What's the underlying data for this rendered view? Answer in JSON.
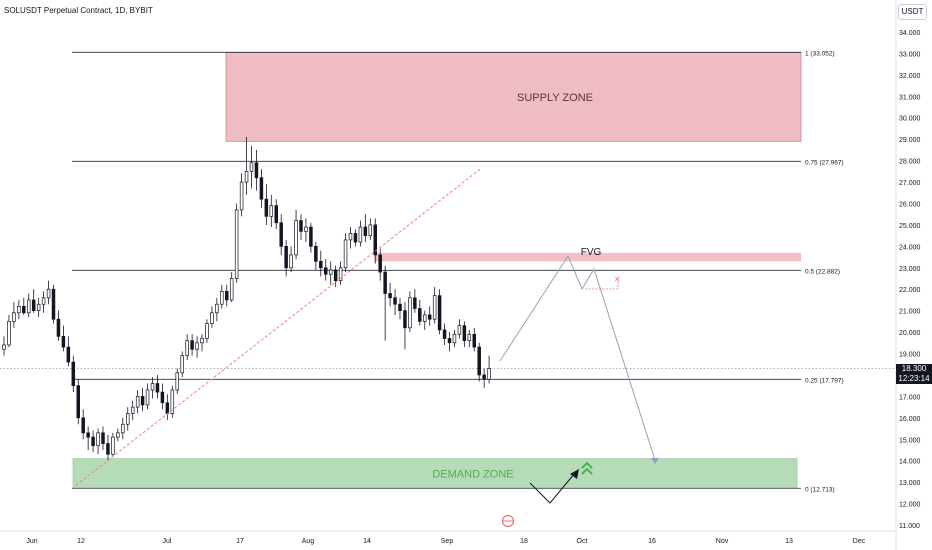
{
  "header": {
    "title": "SOLUSDT Perpetual Contract, 1D, BYBIT",
    "currency": "USDT"
  },
  "price_tag": {
    "price": "18.300",
    "countdown": "12:23:14"
  },
  "colors": {
    "up": "#131722",
    "down": "#131722",
    "supply_fill": "#e8a6ae",
    "demand_fill": "#a8d5ad",
    "fvg_fill": "#f2b8be",
    "trendline": "#f08080",
    "projection": "#9a9fb5",
    "demand_text": "#4caf50",
    "arrow_green": "#4caf50"
  },
  "chart_data": {
    "type": "candlestick",
    "title": "SOLUSDT Perpetual Contract, 1D, BYBIT",
    "ylim": [
      10.4,
      34.6
    ],
    "y_ticks": [
      "11.000",
      "12.000",
      "13.000",
      "14.000",
      "15.000",
      "16.000",
      "17.000",
      "18.000",
      "19.000",
      "20.000",
      "21.000",
      "22.000",
      "23.000",
      "24.000",
      "25.000",
      "26.000",
      "27.000",
      "28.000",
      "29.000",
      "30.000",
      "31.000",
      "32.000",
      "33.000",
      "34.000"
    ],
    "x_ticks": [
      "Jun",
      "12",
      "Jul",
      "17",
      "Aug",
      "14",
      "Sep",
      "18",
      "Oct",
      "16",
      "Nov",
      "13",
      "Dec"
    ],
    "fib_levels": [
      {
        "ratio": "1",
        "price": 33.052,
        "label": "1 (33.052)"
      },
      {
        "ratio": "0.75",
        "price": 27.967,
        "label": "0.75 (27.967)"
      },
      {
        "ratio": "0.5",
        "price": 22.882,
        "label": "0.5 (22.882)"
      },
      {
        "ratio": "0.25",
        "price": 17.797,
        "label": "0.25 (17.797)"
      },
      {
        "ratio": "0",
        "price": 12.713,
        "label": "0 (12.713)"
      }
    ],
    "zones": [
      {
        "name": "SUPPLY ZONE",
        "top": 33.05,
        "bottom": 28.9
      },
      {
        "name": "DEMAND ZONE",
        "top": 14.1,
        "bottom": 12.71
      },
      {
        "name": "FVG",
        "top": 23.7,
        "bottom": 23.3
      }
    ],
    "current_price": 18.3,
    "candles": [
      {
        "o": 19.2,
        "h": 19.8,
        "l": 18.9,
        "c": 19.4
      },
      {
        "o": 19.4,
        "h": 20.8,
        "l": 19.3,
        "c": 20.5
      },
      {
        "o": 20.5,
        "h": 21.4,
        "l": 20.2,
        "c": 20.9
      },
      {
        "o": 20.9,
        "h": 21.5,
        "l": 20.6,
        "c": 21.2
      },
      {
        "o": 21.2,
        "h": 21.6,
        "l": 20.8,
        "c": 20.9
      },
      {
        "o": 20.9,
        "h": 21.8,
        "l": 20.7,
        "c": 21.5
      },
      {
        "o": 21.5,
        "h": 22.0,
        "l": 20.9,
        "c": 21.0
      },
      {
        "o": 21.0,
        "h": 21.6,
        "l": 20.7,
        "c": 21.3
      },
      {
        "o": 21.3,
        "h": 21.9,
        "l": 20.9,
        "c": 21.6
      },
      {
        "o": 21.6,
        "h": 22.4,
        "l": 21.3,
        "c": 22.0
      },
      {
        "o": 22.0,
        "h": 22.2,
        "l": 20.4,
        "c": 20.6
      },
      {
        "o": 20.6,
        "h": 21.0,
        "l": 19.6,
        "c": 19.8
      },
      {
        "o": 19.8,
        "h": 20.3,
        "l": 19.1,
        "c": 19.3
      },
      {
        "o": 19.3,
        "h": 19.8,
        "l": 18.4,
        "c": 18.6
      },
      {
        "o": 18.6,
        "h": 18.9,
        "l": 17.2,
        "c": 17.5
      },
      {
        "o": 17.5,
        "h": 17.8,
        "l": 15.7,
        "c": 16.0
      },
      {
        "o": 16.0,
        "h": 16.4,
        "l": 15.0,
        "c": 15.3
      },
      {
        "o": 15.3,
        "h": 15.6,
        "l": 14.5,
        "c": 15.1
      },
      {
        "o": 15.1,
        "h": 15.4,
        "l": 14.4,
        "c": 14.7
      },
      {
        "o": 14.7,
        "h": 15.5,
        "l": 14.3,
        "c": 15.3
      },
      {
        "o": 15.3,
        "h": 15.6,
        "l": 14.5,
        "c": 14.8
      },
      {
        "o": 14.8,
        "h": 15.2,
        "l": 14.0,
        "c": 14.3
      },
      {
        "o": 14.3,
        "h": 15.3,
        "l": 14.2,
        "c": 15.1
      },
      {
        "o": 15.1,
        "h": 15.5,
        "l": 14.9,
        "c": 15.3
      },
      {
        "o": 15.3,
        "h": 16.0,
        "l": 15.0,
        "c": 15.7
      },
      {
        "o": 15.7,
        "h": 16.5,
        "l": 15.4,
        "c": 16.2
      },
      {
        "o": 16.2,
        "h": 16.8,
        "l": 15.9,
        "c": 16.5
      },
      {
        "o": 16.5,
        "h": 17.3,
        "l": 16.2,
        "c": 17.0
      },
      {
        "o": 17.0,
        "h": 17.4,
        "l": 16.3,
        "c": 16.6
      },
      {
        "o": 16.6,
        "h": 17.6,
        "l": 16.4,
        "c": 17.3
      },
      {
        "o": 17.3,
        "h": 17.9,
        "l": 16.9,
        "c": 17.6
      },
      {
        "o": 17.6,
        "h": 18.0,
        "l": 16.9,
        "c": 17.2
      },
      {
        "o": 17.2,
        "h": 17.6,
        "l": 16.4,
        "c": 16.7
      },
      {
        "o": 16.7,
        "h": 17.1,
        "l": 15.9,
        "c": 16.2
      },
      {
        "o": 16.2,
        "h": 17.5,
        "l": 16.0,
        "c": 17.3
      },
      {
        "o": 17.3,
        "h": 18.3,
        "l": 17.1,
        "c": 18.1
      },
      {
        "o": 18.1,
        "h": 19.1,
        "l": 17.9,
        "c": 18.9
      },
      {
        "o": 18.9,
        "h": 19.9,
        "l": 18.7,
        "c": 19.6
      },
      {
        "o": 19.6,
        "h": 19.9,
        "l": 18.9,
        "c": 19.2
      },
      {
        "o": 19.2,
        "h": 19.8,
        "l": 18.8,
        "c": 19.5
      },
      {
        "o": 19.5,
        "h": 19.9,
        "l": 19.1,
        "c": 19.7
      },
      {
        "o": 19.7,
        "h": 20.6,
        "l": 19.5,
        "c": 20.4
      },
      {
        "o": 20.4,
        "h": 21.2,
        "l": 20.2,
        "c": 20.9
      },
      {
        "o": 20.9,
        "h": 21.6,
        "l": 20.5,
        "c": 21.3
      },
      {
        "o": 21.3,
        "h": 22.2,
        "l": 21.1,
        "c": 21.9
      },
      {
        "o": 21.9,
        "h": 22.2,
        "l": 21.2,
        "c": 21.5
      },
      {
        "o": 21.5,
        "h": 22.8,
        "l": 21.4,
        "c": 22.5
      },
      {
        "o": 22.5,
        "h": 26.0,
        "l": 22.3,
        "c": 25.7
      },
      {
        "o": 25.7,
        "h": 27.4,
        "l": 25.4,
        "c": 27.0
      },
      {
        "o": 27.0,
        "h": 29.1,
        "l": 26.4,
        "c": 27.5
      },
      {
        "o": 27.5,
        "h": 28.7,
        "l": 26.7,
        "c": 27.9
      },
      {
        "o": 27.9,
        "h": 28.5,
        "l": 26.6,
        "c": 27.2
      },
      {
        "o": 27.2,
        "h": 27.6,
        "l": 25.8,
        "c": 26.2
      },
      {
        "o": 26.2,
        "h": 26.9,
        "l": 25.0,
        "c": 25.4
      },
      {
        "o": 25.4,
        "h": 26.4,
        "l": 24.9,
        "c": 25.9
      },
      {
        "o": 25.9,
        "h": 26.2,
        "l": 24.8,
        "c": 25.1
      },
      {
        "o": 25.1,
        "h": 25.5,
        "l": 23.6,
        "c": 24.0
      },
      {
        "o": 24.0,
        "h": 24.3,
        "l": 22.6,
        "c": 23.0
      },
      {
        "o": 23.0,
        "h": 24.0,
        "l": 22.8,
        "c": 23.6
      },
      {
        "o": 23.6,
        "h": 25.7,
        "l": 23.4,
        "c": 25.2
      },
      {
        "o": 25.2,
        "h": 25.5,
        "l": 24.3,
        "c": 24.7
      },
      {
        "o": 24.7,
        "h": 25.3,
        "l": 24.2,
        "c": 24.9
      },
      {
        "o": 24.9,
        "h": 25.1,
        "l": 23.7,
        "c": 24.0
      },
      {
        "o": 24.0,
        "h": 24.2,
        "l": 22.9,
        "c": 23.3
      },
      {
        "o": 23.3,
        "h": 23.8,
        "l": 22.6,
        "c": 23.0
      },
      {
        "o": 23.0,
        "h": 23.4,
        "l": 22.4,
        "c": 22.7
      },
      {
        "o": 22.7,
        "h": 23.3,
        "l": 22.2,
        "c": 22.9
      },
      {
        "o": 22.9,
        "h": 23.1,
        "l": 22.1,
        "c": 22.4
      },
      {
        "o": 22.4,
        "h": 23.3,
        "l": 22.2,
        "c": 23.0
      },
      {
        "o": 23.0,
        "h": 24.6,
        "l": 22.8,
        "c": 24.3
      },
      {
        "o": 24.3,
        "h": 24.9,
        "l": 23.9,
        "c": 24.6
      },
      {
        "o": 24.6,
        "h": 24.8,
        "l": 24.0,
        "c": 24.2
      },
      {
        "o": 24.2,
        "h": 25.2,
        "l": 24.0,
        "c": 24.9
      },
      {
        "o": 24.9,
        "h": 25.5,
        "l": 24.2,
        "c": 24.5
      },
      {
        "o": 24.5,
        "h": 25.3,
        "l": 24.3,
        "c": 25.0
      },
      {
        "o": 25.0,
        "h": 25.3,
        "l": 23.2,
        "c": 23.6
      },
      {
        "o": 23.6,
        "h": 23.9,
        "l": 22.4,
        "c": 22.8
      },
      {
        "o": 22.8,
        "h": 23.1,
        "l": 19.6,
        "c": 21.8
      },
      {
        "o": 21.8,
        "h": 22.3,
        "l": 21.2,
        "c": 21.6
      },
      {
        "o": 21.6,
        "h": 22.0,
        "l": 20.8,
        "c": 21.3
      },
      {
        "o": 21.3,
        "h": 21.6,
        "l": 20.6,
        "c": 21.0
      },
      {
        "o": 21.0,
        "h": 21.4,
        "l": 19.2,
        "c": 20.2
      },
      {
        "o": 20.2,
        "h": 21.9,
        "l": 20.0,
        "c": 21.6
      },
      {
        "o": 21.6,
        "h": 22.0,
        "l": 20.9,
        "c": 21.1
      },
      {
        "o": 21.1,
        "h": 21.5,
        "l": 20.3,
        "c": 20.5
      },
      {
        "o": 20.5,
        "h": 21.0,
        "l": 20.1,
        "c": 20.8
      },
      {
        "o": 20.8,
        "h": 21.2,
        "l": 20.3,
        "c": 20.6
      },
      {
        "o": 20.6,
        "h": 22.1,
        "l": 20.4,
        "c": 21.7
      },
      {
        "o": 21.7,
        "h": 22.0,
        "l": 19.9,
        "c": 20.1
      },
      {
        "o": 20.1,
        "h": 20.4,
        "l": 19.4,
        "c": 19.7
      },
      {
        "o": 19.7,
        "h": 20.0,
        "l": 19.1,
        "c": 19.5
      },
      {
        "o": 19.5,
        "h": 20.1,
        "l": 19.3,
        "c": 19.9
      },
      {
        "o": 19.9,
        "h": 20.6,
        "l": 19.7,
        "c": 20.3
      },
      {
        "o": 20.3,
        "h": 20.5,
        "l": 19.3,
        "c": 19.6
      },
      {
        "o": 19.6,
        "h": 20.1,
        "l": 19.3,
        "c": 19.9
      },
      {
        "o": 19.9,
        "h": 20.2,
        "l": 19.1,
        "c": 19.3
      },
      {
        "o": 19.3,
        "h": 19.5,
        "l": 17.7,
        "c": 18.0
      },
      {
        "o": 18.0,
        "h": 18.3,
        "l": 17.4,
        "c": 17.8
      },
      {
        "o": 17.8,
        "h": 18.9,
        "l": 17.6,
        "c": 18.3
      }
    ],
    "annotations": [
      "SUPPLY ZONE",
      "DEMAND ZONE",
      "FVG"
    ],
    "grid": false
  }
}
